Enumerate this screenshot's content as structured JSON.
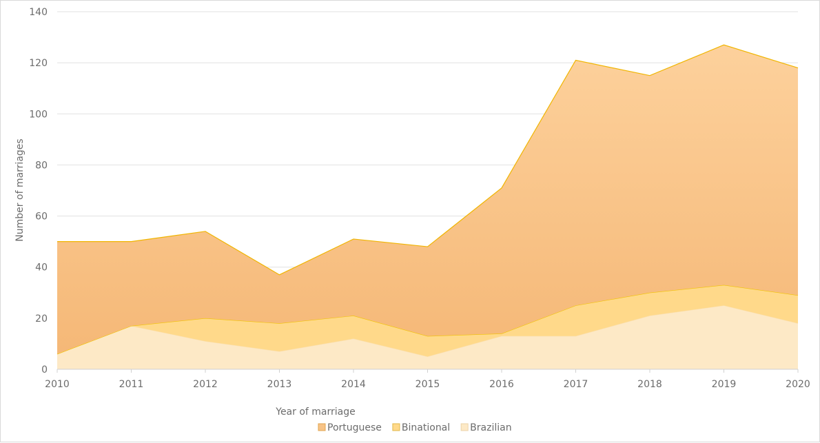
{
  "chart_data": {
    "type": "area",
    "stacked": true,
    "x": [
      2010,
      2011,
      2012,
      2013,
      2014,
      2015,
      2016,
      2017,
      2018,
      2019,
      2020
    ],
    "series": [
      {
        "name": "Brazilian",
        "values": [
          6,
          17,
          11,
          7,
          12,
          5,
          13,
          13,
          21,
          25,
          18
        ],
        "color": "#fde9c6"
      },
      {
        "name": "Binational",
        "values": [
          0,
          0,
          9,
          11,
          9,
          8,
          1,
          12,
          9,
          8,
          11
        ],
        "color": "#ffd98a"
      },
      {
        "name": "Portuguese",
        "values": [
          44,
          33,
          34,
          19,
          30,
          35,
          57,
          96,
          85,
          94,
          89
        ],
        "color": "#f7c387"
      }
    ],
    "xlabel": "Year of marriage",
    "ylabel": "Number of marriages",
    "xlim": [
      2010,
      2020
    ],
    "ylim": [
      0,
      140
    ],
    "yticks": [
      0,
      20,
      40,
      60,
      80,
      100,
      120,
      140
    ],
    "grid": true,
    "legend": "bottom",
    "legend_order": [
      "Portuguese",
      "Binational",
      "Brazilian"
    ]
  }
}
